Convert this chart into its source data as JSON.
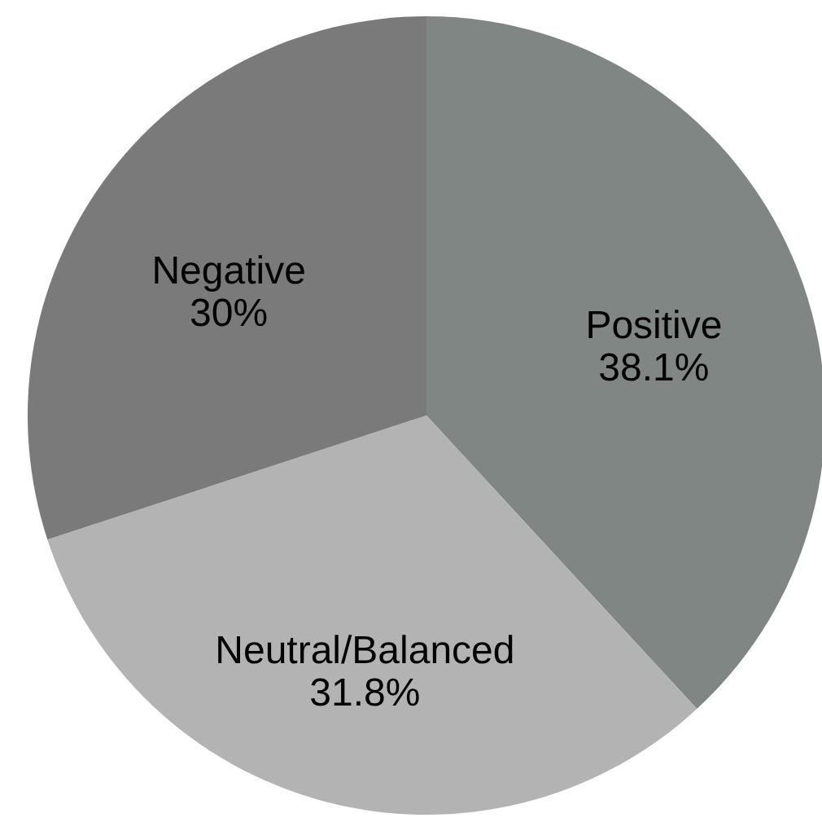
{
  "chart_data": {
    "type": "pie",
    "categories": [
      "Positive",
      "Neutral/Balanced",
      "Negative"
    ],
    "values": [
      38.1,
      31.8,
      30
    ],
    "colors": [
      "#7f8683",
      "#b3b3b3",
      "#7a7a7a"
    ],
    "value_labels": [
      "38.1%",
      "31.8%",
      "30%"
    ],
    "legend": false
  }
}
